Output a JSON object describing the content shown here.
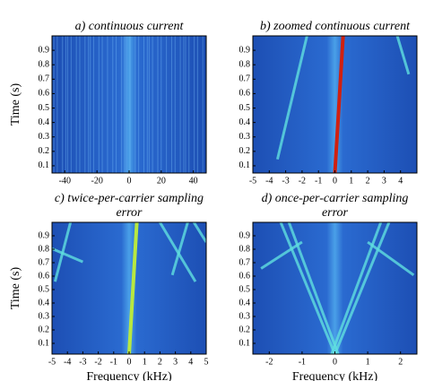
{
  "chart_data": [
    {
      "type": "spectrogram",
      "title": [
        "a) continuous current"
      ],
      "ylabel": "Time (s)",
      "xlim": [
        -48,
        48
      ],
      "ylim": [
        0.05,
        1.0
      ],
      "xticks": [
        -40,
        -20,
        0,
        20,
        40
      ],
      "yticks": [
        0.1,
        0.2,
        0.3,
        0.4,
        0.5,
        0.6,
        0.7,
        0.8,
        0.9
      ]
    },
    {
      "type": "spectrogram",
      "title": [
        "b) zoomed continuous current"
      ],
      "xlim": [
        -5,
        5
      ],
      "ylim": [
        0.05,
        1.0
      ],
      "xticks": [
        -5,
        -4,
        -3,
        -2,
        -1,
        0,
        1,
        2,
        3,
        4
      ],
      "yticks": [
        0.1,
        0.2,
        0.3,
        0.4,
        0.5,
        0.6,
        0.7,
        0.8,
        0.9
      ]
    },
    {
      "type": "spectrogram",
      "title": [
        "c) twice-per-carrier sampling",
        "error"
      ],
      "ylabel": "Time (s)",
      "xlabel": "Frequency (kHz)",
      "xlim": [
        -5,
        5
      ],
      "ylim": [
        0.02,
        1.0
      ],
      "xticks": [
        -5,
        -4,
        -3,
        -2,
        -1,
        0,
        1,
        2,
        3,
        4,
        5
      ],
      "yticks": [
        0.1,
        0.2,
        0.3,
        0.4,
        0.5,
        0.6,
        0.7,
        0.8,
        0.9
      ]
    },
    {
      "type": "spectrogram",
      "title": [
        "d) once-per-carrier sampling",
        "error"
      ],
      "xlabel": "Frequency (kHz)",
      "xlim": [
        -2.5,
        2.5
      ],
      "ylim": [
        0.02,
        1.0
      ],
      "xticks": [
        -2,
        -1,
        0,
        1,
        2
      ],
      "yticks": [
        0.1,
        0.2,
        0.3,
        0.4,
        0.5,
        0.6,
        0.7,
        0.8,
        0.9
      ]
    }
  ]
}
